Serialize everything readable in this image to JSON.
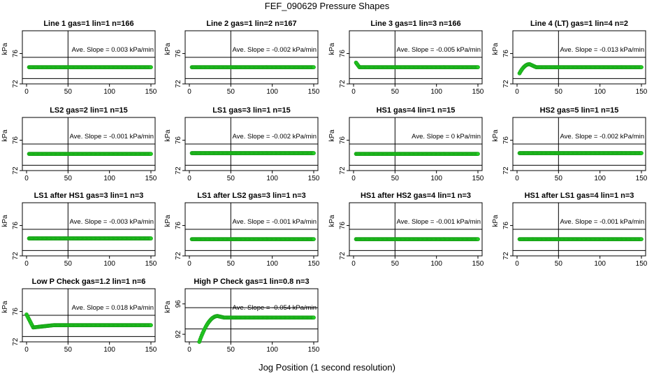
{
  "title": "FEF_090629  Pressure Shapes",
  "xlabel": "Jog Position (1 second resolution)",
  "ylabel": "kPa",
  "slope_prefix": "Ave. Slope =",
  "chart_data": [
    {
      "type": "scatter",
      "title": "Line 1 gas=1 lin=1 n=166",
      "slope": "0.003",
      "slope_unit": "kPa/min",
      "xlim": [
        0,
        150
      ],
      "ylim": [
        72,
        79
      ],
      "yticks": [
        72,
        76
      ],
      "xticks": [
        0,
        50,
        100,
        150
      ],
      "hlines": [
        72.7,
        75.5
      ],
      "vline": 50,
      "x_start": 3,
      "x_end": 150,
      "baseline": 74.2,
      "color": "#22cc22"
    },
    {
      "type": "scatter",
      "title": "Line 2 gas=1 lin=2 n=167",
      "slope": "-0.002",
      "slope_unit": "kPa/min",
      "xlim": [
        0,
        150
      ],
      "ylim": [
        72,
        79
      ],
      "yticks": [
        72,
        76
      ],
      "xticks": [
        0,
        50,
        100,
        150
      ],
      "hlines": [
        72.7,
        75.5
      ],
      "vline": 50,
      "x_start": 3,
      "x_end": 150,
      "baseline": 74.2,
      "color": "#22cc22"
    },
    {
      "type": "scatter",
      "title": "Line 3 gas=1 lin=3 n=166",
      "slope": "-0.005",
      "slope_unit": "kPa/min",
      "xlim": [
        0,
        150
      ],
      "ylim": [
        72,
        79
      ],
      "yticks": [
        72,
        76
      ],
      "xticks": [
        0,
        50,
        100,
        150
      ],
      "hlines": [
        72.7,
        75.5
      ],
      "vline": 50,
      "x_start": 3,
      "x_end": 150,
      "baseline": 74.2,
      "start_bump": 0.6,
      "color": "#22cc22"
    },
    {
      "type": "scatter",
      "title": "Line 4 (LT) gas=1 lin=4 n=2",
      "slope": "-0.013",
      "slope_unit": "kPa/min",
      "xlim": [
        0,
        150
      ],
      "ylim": [
        72,
        79
      ],
      "yticks": [
        72,
        76
      ],
      "xticks": [
        0,
        50,
        100,
        150
      ],
      "hlines": [
        72.7,
        75.5
      ],
      "vline": 50,
      "x_start": 3,
      "x_end": 150,
      "baseline": 74.2,
      "rise_from": 73.4,
      "rise_to": 74.6,
      "rise_len": 12,
      "color": "#22cc22"
    },
    {
      "type": "scatter",
      "title": "LS2 gas=2 lin=1 n=15",
      "slope": "-0.001",
      "slope_unit": "kPa/min",
      "xlim": [
        0,
        150
      ],
      "ylim": [
        72,
        79
      ],
      "yticks": [
        72,
        76
      ],
      "xticks": [
        0,
        50,
        100,
        150
      ],
      "hlines": [
        72.7,
        75.5
      ],
      "vline": 50,
      "x_start": 3,
      "x_end": 150,
      "baseline": 74.2,
      "color": "#22cc22"
    },
    {
      "type": "scatter",
      "title": "LS1 gas=3 lin=1 n=15",
      "slope": "-0.002",
      "slope_unit": "kPa/min",
      "xlim": [
        0,
        150
      ],
      "ylim": [
        72,
        79
      ],
      "yticks": [
        72,
        76
      ],
      "xticks": [
        0,
        50,
        100,
        150
      ],
      "hlines": [
        72.7,
        75.5
      ],
      "vline": 50,
      "x_start": 3,
      "x_end": 150,
      "baseline": 74.3,
      "color": "#22cc22"
    },
    {
      "type": "scatter",
      "title": "HS1 gas=4 lin=1 n=15",
      "slope": "0",
      "slope_unit": "kPa/min",
      "xlim": [
        0,
        150
      ],
      "ylim": [
        72,
        79
      ],
      "yticks": [
        72,
        76
      ],
      "xticks": [
        0,
        50,
        100,
        150
      ],
      "hlines": [
        72.7,
        75.5
      ],
      "vline": 50,
      "x_start": 3,
      "x_end": 150,
      "baseline": 74.2,
      "color": "#22cc22"
    },
    {
      "type": "scatter",
      "title": "HS2 gas=5 lin=1 n=15",
      "slope": "-0.002",
      "slope_unit": "kPa/min",
      "xlim": [
        0,
        150
      ],
      "ylim": [
        72,
        79
      ],
      "yticks": [
        72,
        76
      ],
      "xticks": [
        0,
        50,
        100,
        150
      ],
      "hlines": [
        72.7,
        75.5
      ],
      "vline": 50,
      "x_start": 3,
      "x_end": 150,
      "baseline": 74.3,
      "color": "#22cc22"
    },
    {
      "type": "scatter",
      "title": "LS1 after HS1 gas=3 lin=1 n=3",
      "slope": "-0.003",
      "slope_unit": "kPa/min",
      "xlim": [
        0,
        150
      ],
      "ylim": [
        72,
        79
      ],
      "yticks": [
        72,
        76
      ],
      "xticks": [
        0,
        50,
        100,
        150
      ],
      "hlines": [
        72.7,
        75.5
      ],
      "vline": 50,
      "x_start": 3,
      "x_end": 150,
      "baseline": 74.3,
      "color": "#22cc22"
    },
    {
      "type": "scatter",
      "title": "LS1 after LS2 gas=3 lin=1 n=3",
      "slope": "-0.001",
      "slope_unit": "kPa/min",
      "xlim": [
        0,
        150
      ],
      "ylim": [
        72,
        79
      ],
      "yticks": [
        72,
        76
      ],
      "xticks": [
        0,
        50,
        100,
        150
      ],
      "hlines": [
        72.7,
        75.5
      ],
      "vline": 50,
      "x_start": 3,
      "x_end": 150,
      "baseline": 74.2,
      "color": "#22cc22"
    },
    {
      "type": "scatter",
      "title": "HS1 after HS2 gas=4 lin=1 n=3",
      "slope": "-0.001",
      "slope_unit": "kPa/min",
      "xlim": [
        0,
        150
      ],
      "ylim": [
        72,
        79
      ],
      "yticks": [
        72,
        76
      ],
      "xticks": [
        0,
        50,
        100,
        150
      ],
      "hlines": [
        72.7,
        75.5
      ],
      "vline": 50,
      "x_start": 3,
      "x_end": 150,
      "baseline": 74.2,
      "color": "#22cc22"
    },
    {
      "type": "scatter",
      "title": "HS1 after LS1 gas=4 lin=1 n=3",
      "slope": "-0.001",
      "slope_unit": "kPa/min",
      "xlim": [
        0,
        150
      ],
      "ylim": [
        72,
        79
      ],
      "yticks": [
        72,
        76
      ],
      "xticks": [
        0,
        50,
        100,
        150
      ],
      "hlines": [
        72.7,
        75.5
      ],
      "vline": 50,
      "x_start": 3,
      "x_end": 150,
      "baseline": 74.2,
      "color": "#22cc22"
    },
    {
      "type": "scatter",
      "title": "Low P Check gas=1.2 lin=1 n=6",
      "slope": "0.018",
      "slope_unit": "kPa/min",
      "xlim": [
        0,
        150
      ],
      "ylim": [
        72,
        79
      ],
      "yticks": [
        72,
        76
      ],
      "xticks": [
        0,
        50,
        100,
        150
      ],
      "hlines": [
        72.7,
        75.5
      ],
      "vline": 50,
      "x_start": 0,
      "x_end": 150,
      "baseline": 74.2,
      "drop_from": 75.6,
      "drop_to": 73.9,
      "drop_len": 8,
      "color": "#22cc22"
    },
    {
      "type": "scatter",
      "title": "High P Check gas=1 lin=0.8 n=3",
      "slope": "-0.054",
      "slope_unit": "kPa/min",
      "xlim": [
        0,
        150
      ],
      "ylim": [
        91,
        98
      ],
      "yticks": [
        92,
        96
      ],
      "xticks": [
        0,
        50,
        100,
        150
      ],
      "hlines": [
        92.7,
        95.5
      ],
      "vline": 50,
      "x_start": 12,
      "x_end": 150,
      "baseline": 94.2,
      "rise_from": 91.0,
      "rise_to": 94.4,
      "rise_len": 22,
      "color": "#22cc22"
    }
  ]
}
